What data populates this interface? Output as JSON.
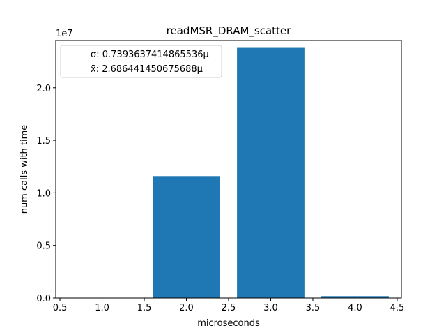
{
  "chart_data": {
    "type": "bar",
    "title": "readMSR_DRAM_scatter",
    "xlabel": "microseconds",
    "ylabel": "num calls with time",
    "y_multiplier_label": "1e7",
    "xlim": [
      0.45,
      4.55
    ],
    "ylim": [
      0,
      24500000.0
    ],
    "xticks": [
      0.5,
      1.0,
      1.5,
      2.0,
      2.5,
      3.0,
      3.5,
      4.0,
      4.5
    ],
    "xtick_labels": [
      "0.5",
      "1.0",
      "1.5",
      "2.0",
      "2.5",
      "3.0",
      "3.5",
      "4.0",
      "4.5"
    ],
    "yticks": [
      0,
      5000000,
      10000000,
      15000000,
      20000000
    ],
    "ytick_labels": [
      "0.0",
      "0.5",
      "1.0",
      "1.5",
      "2.0"
    ],
    "bar_width": 0.8,
    "x": [
      1,
      2,
      3,
      4
    ],
    "values": [
      0,
      11600000,
      23800000,
      180000
    ],
    "bar_color": "#1f77b4",
    "grid": false,
    "legend": {
      "placement": "top-left",
      "entries": [
        "σ: 0.7393637414865536µ",
        "x̄: 2.686441450675688µ"
      ]
    }
  }
}
